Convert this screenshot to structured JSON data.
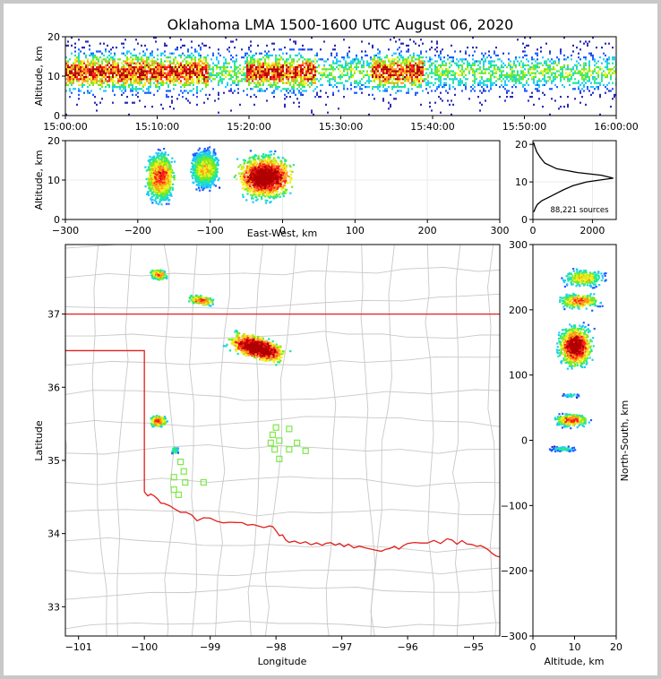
{
  "title": "Oklahoma LMA 1500-1600 UTC August 06, 2020",
  "colors": {
    "state_border": "#e0201c",
    "county_lines": "#c8c8c8",
    "station_marker": "#7de84a",
    "density_ramp": [
      "#2a2ab8",
      "#1e5cff",
      "#1ec8ff",
      "#1ee8a0",
      "#7ce81e",
      "#f0f01e",
      "#ff9a1e",
      "#ff1e1e",
      "#b00000",
      "#000000",
      "#ffffff"
    ]
  },
  "chart_data": [
    {
      "id": "time_height",
      "type": "heatmap",
      "ylabel": "Altitude, km",
      "ylim": [
        0,
        20
      ],
      "yticks": [
        "0",
        "10",
        "20"
      ],
      "xticks": [
        "15:00:00",
        "15:10:00",
        "15:20:00",
        "15:30:00",
        "15:40:00",
        "15:50:00",
        "16:00:00"
      ]
    },
    {
      "id": "east_west_height",
      "type": "heatmap",
      "xlabel": "East-West, km",
      "ylabel": "Altitude, km",
      "xlim": [
        -300,
        300
      ],
      "ylim": [
        0,
        20
      ],
      "xticks": [
        "−300",
        "−200",
        "−100",
        "0",
        "100",
        "200",
        "300"
      ],
      "yticks": [
        "0",
        "10",
        "20"
      ],
      "clusters_x_km": [
        -170,
        -110,
        -20
      ]
    },
    {
      "id": "altitude_histogram",
      "type": "line",
      "xlim": [
        0,
        2800
      ],
      "ylim": [
        0,
        21
      ],
      "xticks": [
        "0",
        "2000"
      ],
      "yticks": [
        "0",
        "10",
        "20"
      ],
      "annotation": "88,221 sources",
      "points": [
        [
          30,
          2
        ],
        [
          80,
          3
        ],
        [
          150,
          4
        ],
        [
          300,
          5
        ],
        [
          550,
          6
        ],
        [
          800,
          7
        ],
        [
          1050,
          8
        ],
        [
          1350,
          9
        ],
        [
          1800,
          10
        ],
        [
          2700,
          11
        ],
        [
          2300,
          11.8
        ],
        [
          1500,
          12.5
        ],
        [
          800,
          13.5
        ],
        [
          400,
          15
        ],
        [
          250,
          16.5
        ],
        [
          130,
          18
        ],
        [
          60,
          19.5
        ],
        [
          20,
          20.5
        ]
      ]
    },
    {
      "id": "plan_view",
      "type": "heatmap",
      "xlabel": "Longitude",
      "ylabel": "Latitude",
      "xlim": [
        -101.2,
        -94.6
      ],
      "ylim": [
        32.6,
        37.95
      ],
      "xticks": [
        "−101",
        "−100",
        "−99",
        "−98",
        "−97",
        "−96",
        "−95"
      ],
      "yticks": [
        "33",
        "34",
        "35",
        "36",
        "37"
      ],
      "storms": [
        {
          "lon": -98.3,
          "lat": 36.55
        },
        {
          "lon": -99.8,
          "lat": 37.55
        },
        {
          "lon": -99.15,
          "lat": 37.2
        },
        {
          "lon": -99.8,
          "lat": 35.55
        },
        {
          "lon": -99.55,
          "lat": 35.15
        }
      ],
      "stations": [
        [
          -98.0,
          35.45
        ],
        [
          -97.8,
          35.43
        ],
        [
          -98.05,
          35.35
        ],
        [
          -97.95,
          35.27
        ],
        [
          -98.08,
          35.24
        ],
        [
          -97.68,
          35.24
        ],
        [
          -97.8,
          35.15
        ],
        [
          -98.02,
          35.15
        ],
        [
          -97.55,
          35.13
        ],
        [
          -97.95,
          35.02
        ],
        [
          -99.45,
          34.98
        ],
        [
          -99.4,
          34.85
        ],
        [
          -99.55,
          34.77
        ],
        [
          -99.38,
          34.7
        ],
        [
          -99.1,
          34.7
        ],
        [
          -99.55,
          34.6
        ],
        [
          -99.48,
          34.53
        ]
      ]
    },
    {
      "id": "altitude_north_south",
      "type": "heatmap",
      "xlabel": "Altitude, km",
      "ylabel": "North-South, km",
      "xlim": [
        0,
        20
      ],
      "ylim": [
        -300,
        300
      ],
      "xticks": [
        "0",
        "10",
        "20"
      ],
      "yticks": [
        "300",
        "200",
        "100",
        "0",
        "−100",
        "−200",
        "−300"
      ]
    }
  ]
}
